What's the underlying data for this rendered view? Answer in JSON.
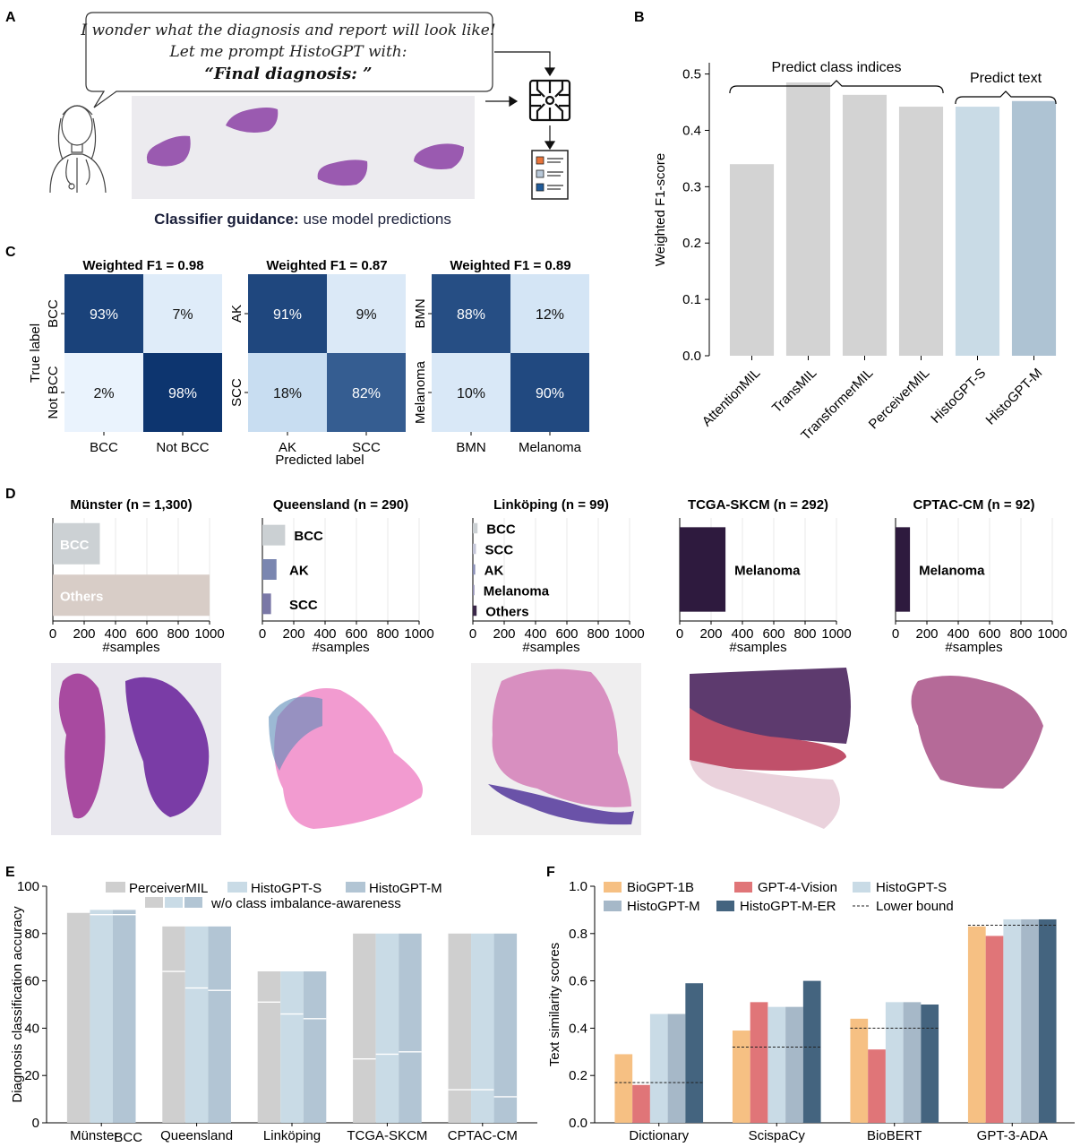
{
  "panels": {
    "A": "A",
    "B": "B",
    "C": "C",
    "D": "D",
    "E": "E",
    "F": "F"
  },
  "panel_a": {
    "speech_line1": "I wonder what the diagnosis and report will look like!",
    "speech_line2": "Let me prompt HistoGPT with:",
    "speech_line3": "“Final diagnosis: ”",
    "caption_bold": "Classifier guidance:",
    "caption_rest": " use model predictions",
    "report_colors": [
      "#e8743b",
      "#b8c8d8",
      "#1f5b9a"
    ]
  },
  "panel_b": {
    "chart_data": {
      "type": "bar",
      "categories": [
        "AttentionMIL",
        "TransMIL",
        "TransformerMIL",
        "PerceiverMIL",
        "HistoGPT-S",
        "HistoGPT-M"
      ],
      "values": [
        0.34,
        0.485,
        0.463,
        0.442,
        0.442,
        0.452
      ],
      "colors": [
        "#d3d3d3",
        "#d3d3d3",
        "#d3d3d3",
        "#d3d3d3",
        "#c9dbe6",
        "#aec3d3"
      ],
      "ylabel": "Weighted F1-score",
      "ylim": [
        0,
        0.52
      ],
      "yticks": [
        "0.0",
        "0.1",
        "0.2",
        "0.3",
        "0.4",
        "0.5"
      ],
      "bracket_left": "Predict class indices",
      "bracket_right": "Predict text"
    }
  },
  "panel_c": {
    "ylabel": "True label",
    "xlabel": "Predicted label",
    "chart_data": [
      {
        "type": "heatmap",
        "title": "Weighted F1 = 0.98",
        "rows": [
          "BCC",
          "Not BCC"
        ],
        "cols": [
          "BCC",
          "Not BCC"
        ],
        "values": [
          [
            93,
            7
          ],
          [
            2,
            98
          ]
        ],
        "labels": [
          [
            "93%",
            "7%"
          ],
          [
            "2%",
            "98%"
          ]
        ]
      },
      {
        "type": "heatmap",
        "title": "Weighted F1 = 0.87",
        "rows": [
          "AK",
          "SCC"
        ],
        "cols": [
          "AK",
          "SCC"
        ],
        "values": [
          [
            91,
            9
          ],
          [
            18,
            82
          ]
        ],
        "labels": [
          [
            "91%",
            "9%"
          ],
          [
            "18%",
            "82%"
          ]
        ]
      },
      {
        "type": "heatmap",
        "title": "Weighted F1 = 0.89",
        "rows": [
          "BMN",
          "Melanoma"
        ],
        "cols": [
          "BMN",
          "Melanoma"
        ],
        "values": [
          [
            88,
            12
          ],
          [
            10,
            90
          ]
        ],
        "labels": [
          [
            "88%",
            "12%"
          ],
          [
            "10%",
            "90%"
          ]
        ]
      }
    ]
  },
  "panel_d": {
    "xlabel": "#samples",
    "xticks": [
      "0",
      "200",
      "400",
      "600",
      "800",
      "1000"
    ],
    "chart_data": [
      {
        "type": "bar",
        "title": "Münster (n = 1,300)",
        "categories": [
          "BCC",
          "Others"
        ],
        "values": [
          300,
          1000
        ],
        "colors": [
          "#ccd1d4",
          "#d8cdc7"
        ],
        "labels_inside": true
      },
      {
        "type": "bar",
        "title": "Queensland (n = 290)",
        "categories": [
          "BCC",
          "AK",
          "SCC"
        ],
        "values": [
          145,
          90,
          55
        ],
        "colors": [
          "#cbd0d3",
          "#7a86b0",
          "#7a78a6"
        ]
      },
      {
        "type": "bar",
        "title": "Linköping (n = 99)",
        "categories": [
          "BCC",
          "SCC",
          "AK",
          "Melanoma",
          "Others"
        ],
        "values": [
          30,
          20,
          15,
          10,
          24
        ],
        "colors": [
          "#cbd0d3",
          "#c4c6d8",
          "#8a8fb6",
          "#9390b4",
          "#3a2748"
        ]
      },
      {
        "type": "bar",
        "title": "TCGA-SKCM (n = 292)",
        "categories": [
          "Melanoma"
        ],
        "values": [
          292
        ],
        "colors": [
          "#2e1a3e"
        ]
      },
      {
        "type": "bar",
        "title": "CPTAC-CM (n = 92)",
        "categories": [
          "Melanoma"
        ],
        "values": [
          92
        ],
        "colors": [
          "#2e1a3e"
        ]
      }
    ]
  },
  "panel_e": {
    "chart_data": {
      "type": "bar",
      "categories": [
        "Münster",
        "Queensland",
        "Linköping",
        "TCGA-SKCM",
        "CPTAC-CM"
      ],
      "category_suffix": "BCC",
      "ylabel": "Diagnosis classification accuracy",
      "ylim": [
        0,
        100
      ],
      "yticks": [
        "0",
        "20",
        "40",
        "60",
        "80",
        "100"
      ],
      "series": [
        {
          "name": "PerceiverMIL",
          "color": "#cfcfcf",
          "values": [
            89,
            83,
            64,
            80,
            80
          ],
          "imbalance_aware_values": [
            89,
            64,
            51,
            27,
            14
          ]
        },
        {
          "name": "HistoGPT-S",
          "color": "#c9dbe6",
          "values": [
            90,
            83,
            64,
            80,
            80
          ],
          "imbalance_aware_values": [
            88,
            57,
            46,
            29,
            14
          ]
        },
        {
          "name": "HistoGPT-M",
          "color": "#b2c5d4",
          "values": [
            90,
            83,
            64,
            80,
            80
          ],
          "imbalance_aware_values": [
            88,
            56,
            44,
            30,
            11
          ]
        }
      ],
      "legend_second_row": "w/o class imbalance-awareness"
    }
  },
  "panel_f": {
    "chart_data": {
      "type": "bar",
      "categories": [
        "Dictionary",
        "ScispaCy",
        "BioBERT",
        "GPT-3-ADA"
      ],
      "ylabel": "Text similarity scores",
      "ylim": [
        0,
        1.0
      ],
      "yticks": [
        "0.0",
        "0.2",
        "0.4",
        "0.6",
        "0.8",
        "1.0"
      ],
      "series": [
        {
          "name": "BioGPT-1B",
          "color": "#f6c083",
          "values": [
            0.29,
            0.39,
            0.44,
            0.83
          ]
        },
        {
          "name": "GPT-4-Vision",
          "color": "#e07578",
          "values": [
            0.16,
            0.51,
            0.31,
            0.79
          ]
        },
        {
          "name": "HistoGPT-S",
          "color": "#c9dbe6",
          "values": [
            0.46,
            0.49,
            0.51,
            0.86
          ]
        },
        {
          "name": "HistoGPT-M",
          "color": "#a6b8c8",
          "values": [
            0.46,
            0.49,
            0.51,
            0.86
          ]
        },
        {
          "name": "HistoGPT-M-ER",
          "color": "#44647f",
          "values": [
            0.59,
            0.6,
            0.5,
            0.86
          ]
        }
      ],
      "lower_bound": {
        "name": "Lower bound",
        "values": [
          0.17,
          0.32,
          0.4,
          0.835
        ]
      }
    }
  }
}
